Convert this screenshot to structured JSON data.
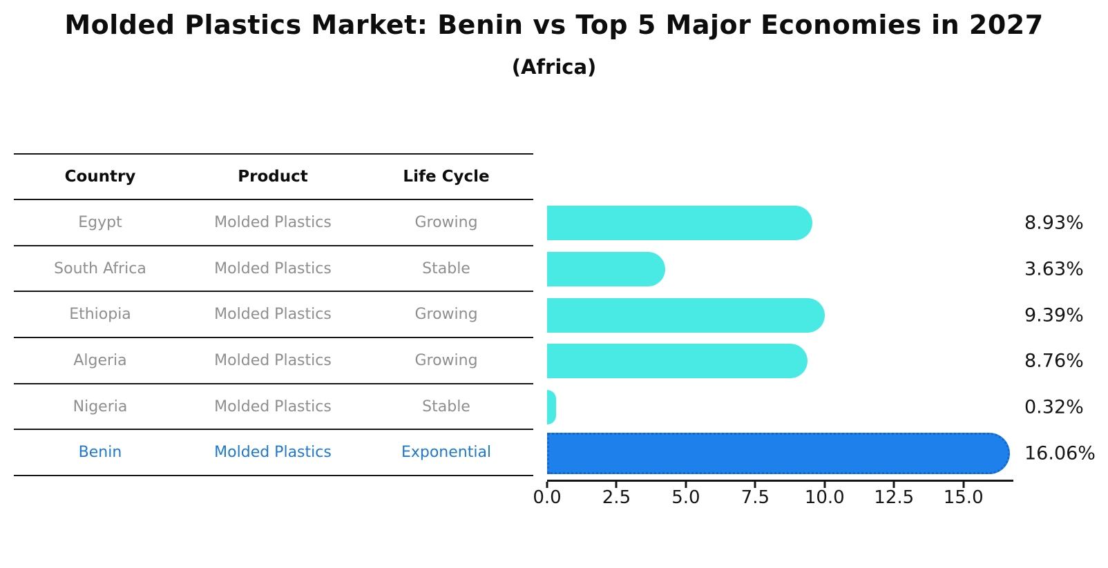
{
  "chart_data": {
    "type": "bar",
    "orientation": "horizontal",
    "title": "Molded Plastics Market: Benin vs Top 5 Major Economies in 2027",
    "subtitle": "(Africa)",
    "categories": [
      "Egypt",
      "South Africa",
      "Ethiopia",
      "Algeria",
      "Nigeria",
      "Benin"
    ],
    "values": [
      8.93,
      3.63,
      9.39,
      8.76,
      0.32,
      16.06
    ],
    "value_labels": [
      "8.93%",
      "3.63%",
      "9.39%",
      "8.76%",
      "0.32%",
      "16.06%"
    ],
    "x_ticks": [
      "0.0",
      "2.5",
      "5.0",
      "7.5",
      "10.0",
      "12.5",
      "15.0"
    ],
    "x_tick_values": [
      0,
      2.5,
      5,
      7.5,
      10,
      12.5,
      15
    ],
    "xlim": [
      0,
      16.8
    ],
    "grid": false,
    "legend": "none",
    "bar_color": "#4AEAE4",
    "highlight_index": 5,
    "highlight_color": "#1E80EA",
    "highlight_edge_color": "#1565CD"
  },
  "table": {
    "headers": [
      "Country",
      "Product",
      "Life Cycle"
    ],
    "rows": [
      {
        "country": "Egypt",
        "product": "Molded Plastics",
        "life_cycle": "Growing",
        "highlight": false
      },
      {
        "country": "South Africa",
        "product": "Molded Plastics",
        "life_cycle": "Stable",
        "highlight": false
      },
      {
        "country": "Ethiopia",
        "product": "Molded Plastics",
        "life_cycle": "Growing",
        "highlight": false
      },
      {
        "country": "Algeria",
        "product": "Molded Plastics",
        "life_cycle": "Growing",
        "highlight": false
      },
      {
        "country": "Nigeria",
        "product": "Molded Plastics",
        "life_cycle": "Stable",
        "highlight": false
      },
      {
        "country": "Benin",
        "product": "Molded Plastics",
        "life_cycle": "Exponential",
        "highlight": true
      }
    ]
  },
  "colors": {
    "text": "#141414",
    "muted_text": "#8e8e8e",
    "highlight_text": "#1e78ce",
    "background": "#ffffff"
  }
}
